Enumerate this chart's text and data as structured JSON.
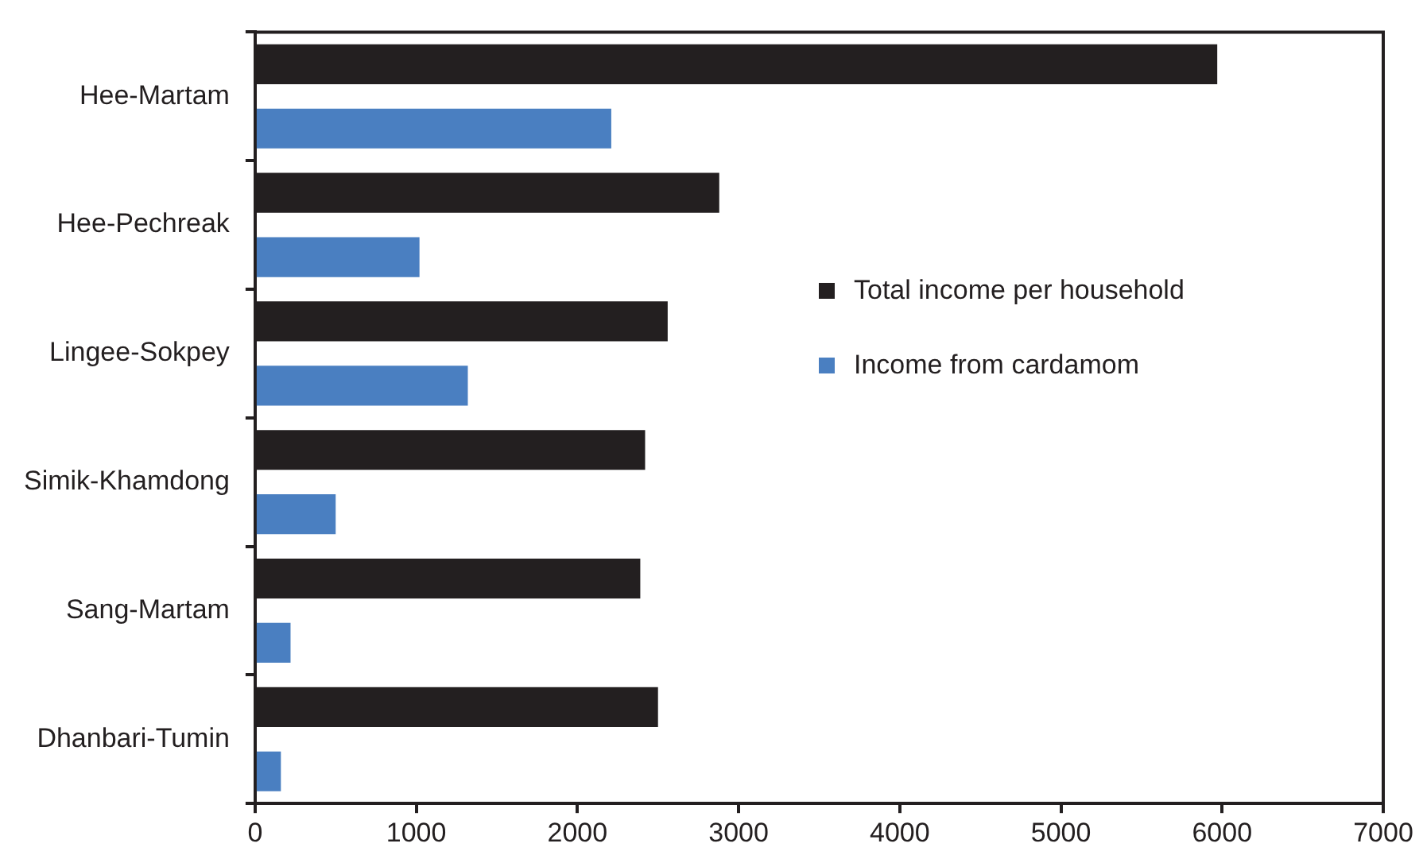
{
  "chart_data": {
    "type": "bar",
    "orientation": "horizontal",
    "categories": [
      "Hee-Martam",
      "Hee-Pechreak",
      "Lingee-Sokpey",
      "Simik-Khamdong",
      "Sang-Martam",
      "Dhanbari-Tumin"
    ],
    "series": [
      {
        "name": "Total income per household",
        "color": "#231f20",
        "values": [
          5970,
          2880,
          2560,
          2420,
          2390,
          2500
        ]
      },
      {
        "name": "Income from cardamom",
        "color": "#4a7fc1",
        "values": [
          2210,
          1020,
          1320,
          500,
          220,
          160
        ]
      }
    ],
    "xlim": [
      0,
      7000
    ],
    "xticks": [
      0,
      1000,
      2000,
      3000,
      4000,
      5000,
      6000,
      7000
    ],
    "grid": false,
    "legend": "right"
  }
}
